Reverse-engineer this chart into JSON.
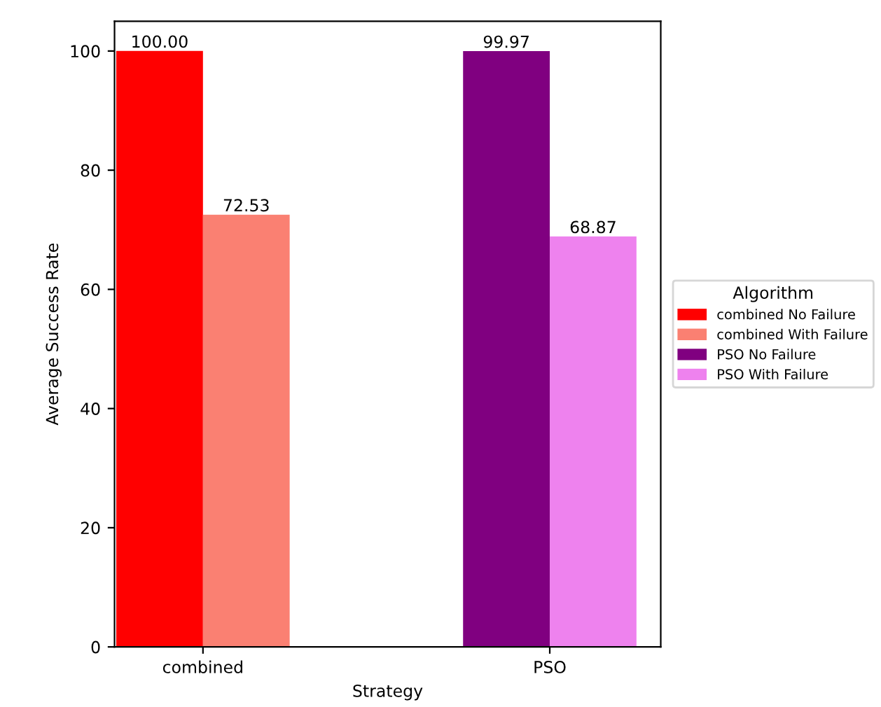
{
  "chart_data": {
    "type": "bar",
    "xlabel": "Strategy",
    "ylabel": "Average Success Rate",
    "legend_title": "Algorithm",
    "legend": "right",
    "categories": [
      "combined",
      "PSO"
    ],
    "series": [
      {
        "name": "combined No Failure",
        "color": "#ff0000",
        "values": [
          100.0,
          null
        ]
      },
      {
        "name": "combined With Failure",
        "color": "#fa8072",
        "values": [
          72.53,
          null
        ]
      },
      {
        "name": "PSO No Failure",
        "color": "#800080",
        "values": [
          null,
          99.97
        ]
      },
      {
        "name": "PSO With Failure",
        "color": "#ee82ee",
        "values": [
          null,
          68.87
        ]
      }
    ],
    "value_labels": [
      [
        "100.00",
        null
      ],
      [
        "72.53",
        null
      ],
      [
        null,
        "99.97"
      ],
      [
        null,
        "68.87"
      ]
    ],
    "ylim": [
      0,
      105
    ],
    "yticks": [
      0,
      20,
      40,
      60,
      80,
      100
    ],
    "grid": false
  }
}
